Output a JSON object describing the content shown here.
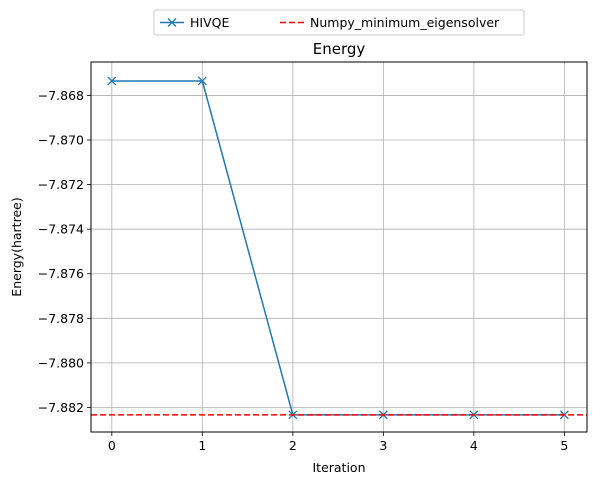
{
  "chart_data": {
    "type": "line",
    "title": "Energy",
    "xlabel": "Iteration",
    "ylabel": "Energy(hartree)",
    "x": [
      0,
      1,
      2,
      3,
      4,
      5
    ],
    "xlim": [
      -0.23,
      5.25
    ],
    "ylim": [
      -7.8831,
      -7.8665
    ],
    "xticks": [
      0,
      1,
      2,
      3,
      4,
      5
    ],
    "yticks": [
      -7.868,
      -7.87,
      -7.872,
      -7.874,
      -7.876,
      -7.878,
      -7.88,
      -7.882
    ],
    "ytick_labels": [
      "−7.868",
      "−7.870",
      "−7.872",
      "−7.874",
      "−7.876",
      "−7.878",
      "−7.880",
      "−7.882"
    ],
    "grid": true,
    "legend_position": "top-center-outside",
    "series": [
      {
        "name": "HIVQE",
        "kind": "line",
        "marker": "x",
        "color": "#1f77b4",
        "values": [
          -7.86735,
          -7.86735,
          -7.88233,
          -7.88233,
          -7.88233,
          -7.88233
        ]
      },
      {
        "name": "Numpy_minimum_eigensolver",
        "kind": "hline",
        "dashed": true,
        "color": "#ff0000",
        "value": -7.88233
      }
    ]
  }
}
